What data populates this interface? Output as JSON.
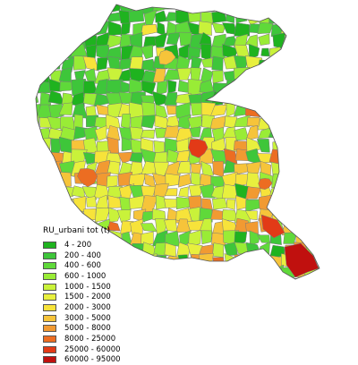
{
  "legend": {
    "title": "RU_urbani tot (t)",
    "classes": [
      {
        "label": "4 - 200",
        "color": "#1fb31f"
      },
      {
        "label": "200 - 400",
        "color": "#3ec63a"
      },
      {
        "label": "400 - 600",
        "color": "#5fd93a"
      },
      {
        "label": "600 - 1000",
        "color": "#99ec36"
      },
      {
        "label": "1000 - 1500",
        "color": "#c9f23a"
      },
      {
        "label": "1500 - 2000",
        "color": "#e8f03e"
      },
      {
        "label": "2000 - 3000",
        "color": "#f7e33a"
      },
      {
        "label": "3000 - 5000",
        "color": "#f6c43a"
      },
      {
        "label": "5000 - 8000",
        "color": "#f19a32"
      },
      {
        "label": "8000 - 25000",
        "color": "#ec6d22"
      },
      {
        "label": "25000 - 60000",
        "color": "#e23a17"
      },
      {
        "label": "60000 - 95000",
        "color": "#c0100e"
      }
    ]
  }
}
